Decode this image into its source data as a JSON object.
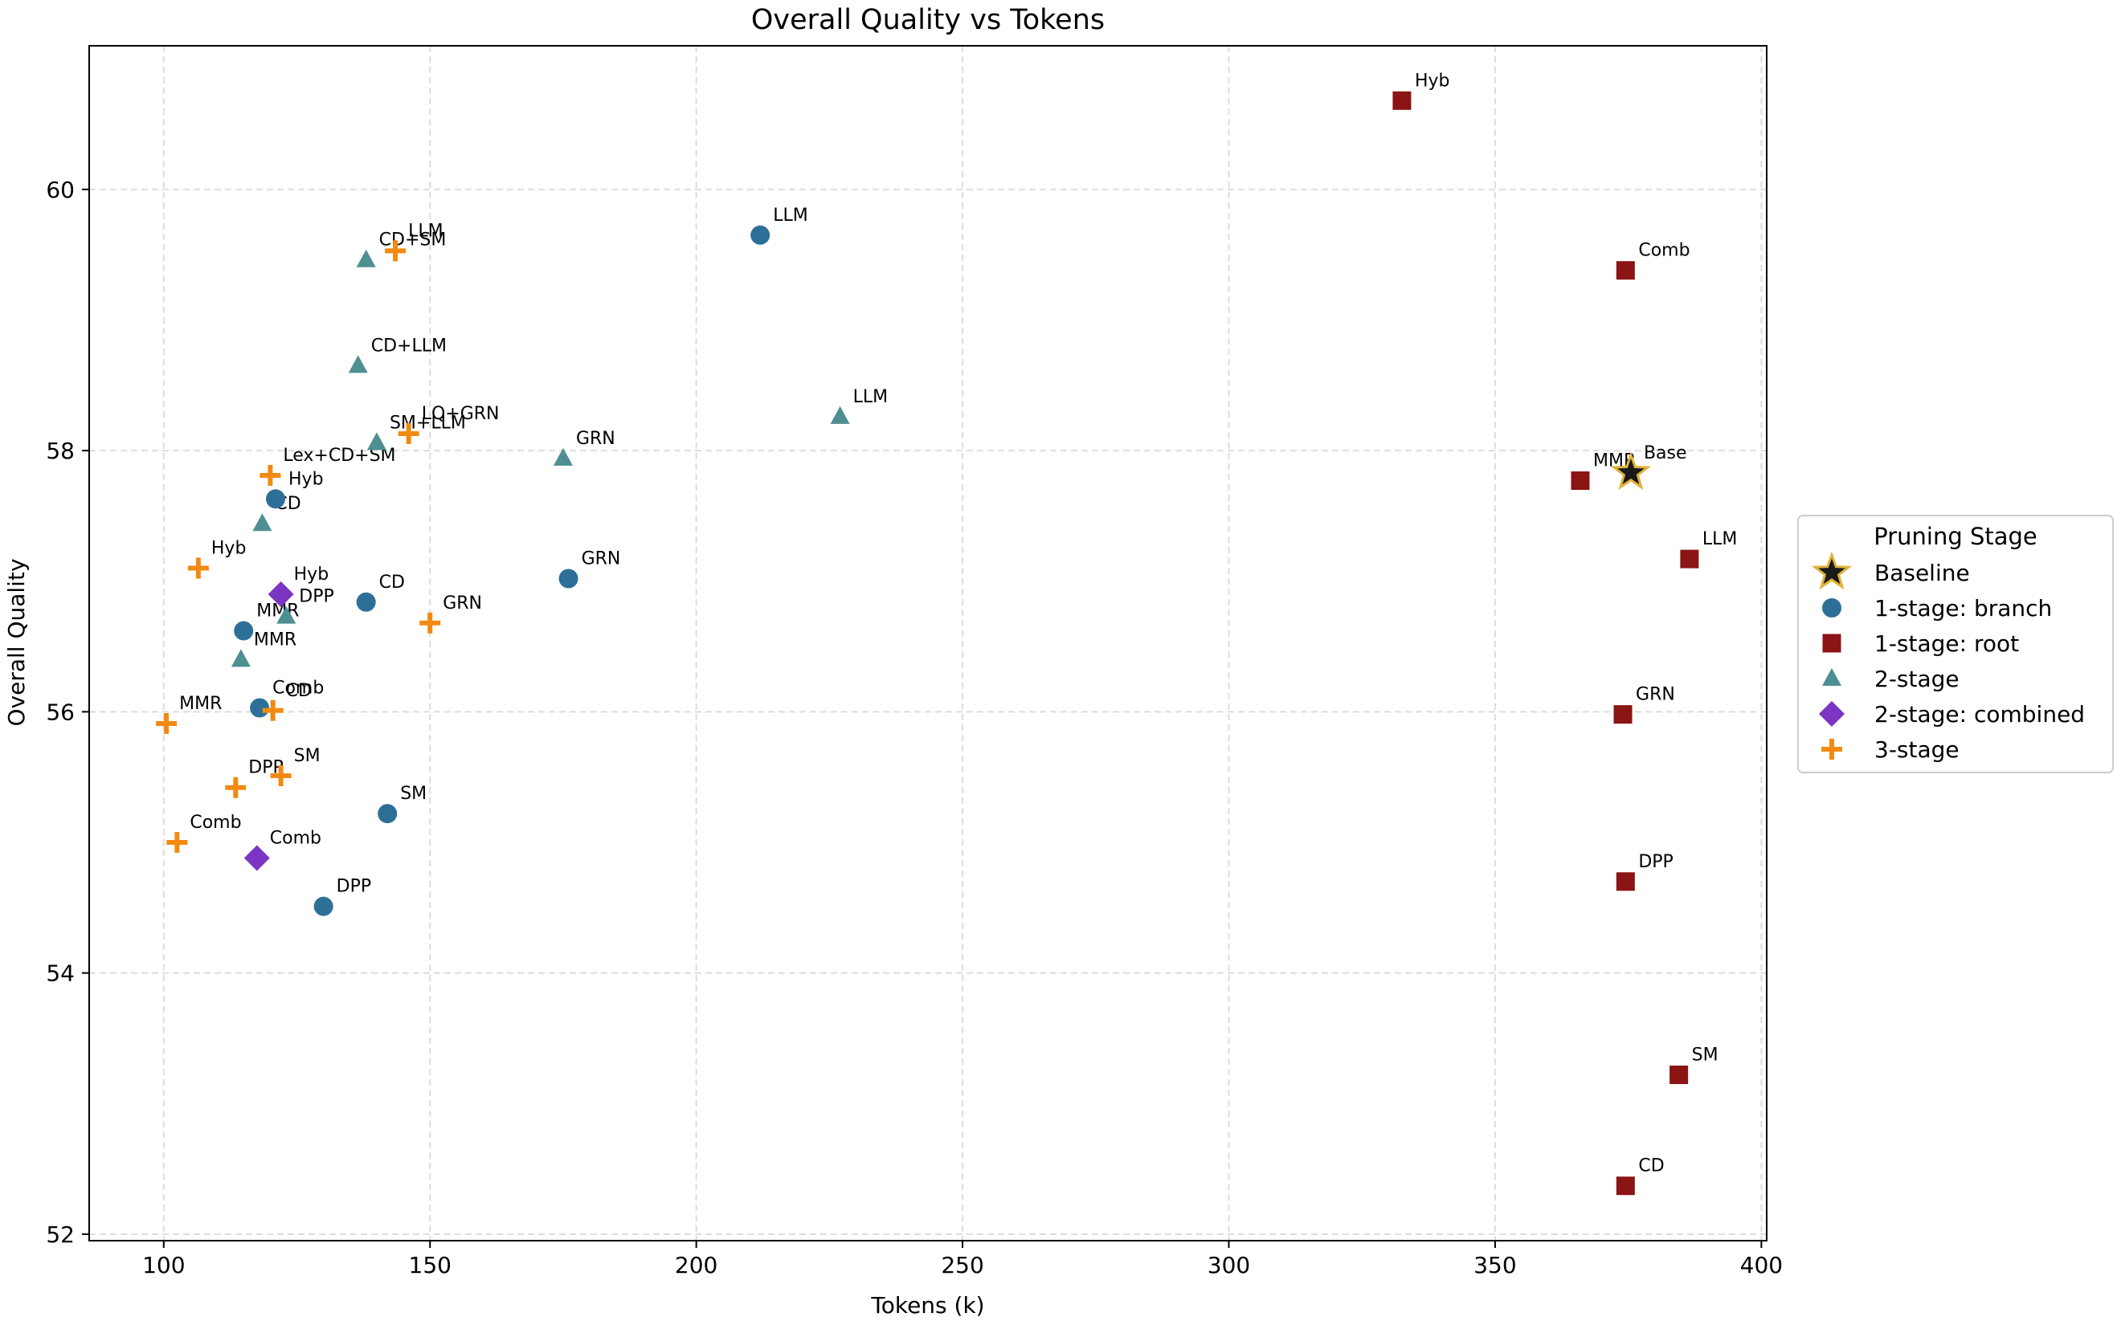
{
  "chart_data": {
    "type": "scatter",
    "title": "Overall Quality vs Tokens",
    "xlabel": "Tokens (k)",
    "ylabel": "Overall Quality",
    "xlim": [
      86,
      401
    ],
    "ylim": [
      51.95,
      61.1
    ],
    "xticks": [
      100,
      150,
      200,
      250,
      300,
      350,
      400
    ],
    "yticks": [
      52,
      54,
      56,
      58,
      60
    ],
    "grid": true,
    "legend_title": "Pruning Stage",
    "legend_position": "outside-right",
    "series": [
      {
        "name": "Baseline",
        "marker": "star",
        "color": "#1a1a1a",
        "edgecolor": "#e0b23c",
        "points": [
          {
            "x": 375.5,
            "y": 57.83,
            "label": "Base"
          }
        ]
      },
      {
        "name": "1-stage: branch",
        "marker": "circle",
        "color": "#2e6f98",
        "points": [
          {
            "x": 212,
            "y": 59.65,
            "label": "LLM"
          },
          {
            "x": 121,
            "y": 57.63,
            "label": "Hyb"
          },
          {
            "x": 176,
            "y": 57.02,
            "label": "GRN"
          },
          {
            "x": 138,
            "y": 56.84,
            "label": "CD"
          },
          {
            "x": 115,
            "y": 56.62,
            "label": "MMR"
          },
          {
            "x": 118,
            "y": 56.03,
            "label": "Comb"
          },
          {
            "x": 142,
            "y": 55.22,
            "label": "SM"
          },
          {
            "x": 130,
            "y": 54.51,
            "label": "DPP"
          }
        ]
      },
      {
        "name": "1-stage: root",
        "marker": "square",
        "color": "#8b1414",
        "points": [
          {
            "x": 332.5,
            "y": 60.68,
            "label": "Hyb"
          },
          {
            "x": 374.5,
            "y": 59.38,
            "label": "Comb"
          },
          {
            "x": 366,
            "y": 57.77,
            "label": "MMR"
          },
          {
            "x": 386.5,
            "y": 57.17,
            "label": "LLM"
          },
          {
            "x": 374,
            "y": 55.98,
            "label": "GRN"
          },
          {
            "x": 374.5,
            "y": 54.7,
            "label": "DPP"
          },
          {
            "x": 384.5,
            "y": 53.22,
            "label": "SM"
          },
          {
            "x": 374.5,
            "y": 52.37,
            "label": "CD"
          }
        ]
      },
      {
        "name": "2-stage",
        "marker": "triangle",
        "color": "#4e8f92",
        "points": [
          {
            "x": 138,
            "y": 59.46,
            "label": "CD+SM"
          },
          {
            "x": 136.5,
            "y": 58.65,
            "label": "CD+LLM"
          },
          {
            "x": 227,
            "y": 58.26,
            "label": "LLM"
          },
          {
            "x": 140,
            "y": 58.06,
            "label": "SM+LLM"
          },
          {
            "x": 175,
            "y": 57.94,
            "label": "GRN"
          },
          {
            "x": 118.5,
            "y": 57.44,
            "label": "CD"
          },
          {
            "x": 123,
            "y": 56.73,
            "label": "DPP"
          },
          {
            "x": 114.5,
            "y": 56.4,
            "label": "MMR"
          }
        ]
      },
      {
        "name": "2-stage: combined",
        "marker": "diamond",
        "color": "#7b35c2",
        "points": [
          {
            "x": 122,
            "y": 56.9,
            "label": "Hyb"
          },
          {
            "x": 117.5,
            "y": 54.88,
            "label": "Comb"
          }
        ]
      },
      {
        "name": "3-stage",
        "marker": "plus",
        "color": "#f28a12",
        "points": [
          {
            "x": 143.5,
            "y": 59.53,
            "label": "LLM"
          },
          {
            "x": 146,
            "y": 58.13,
            "label": "LQ+GRN"
          },
          {
            "x": 120,
            "y": 57.81,
            "label": "Lex+CD+SM"
          },
          {
            "x": 106.5,
            "y": 57.1,
            "label": "Hyb"
          },
          {
            "x": 150,
            "y": 56.68,
            "label": "GRN"
          },
          {
            "x": 120.5,
            "y": 56.01,
            "label": "CD"
          },
          {
            "x": 100.5,
            "y": 55.91,
            "label": "MMR"
          },
          {
            "x": 122,
            "y": 55.51,
            "label": "SM"
          },
          {
            "x": 113.5,
            "y": 55.42,
            "label": "DPP"
          },
          {
            "x": 102.5,
            "y": 55.0,
            "label": "Comb"
          }
        ]
      }
    ]
  }
}
